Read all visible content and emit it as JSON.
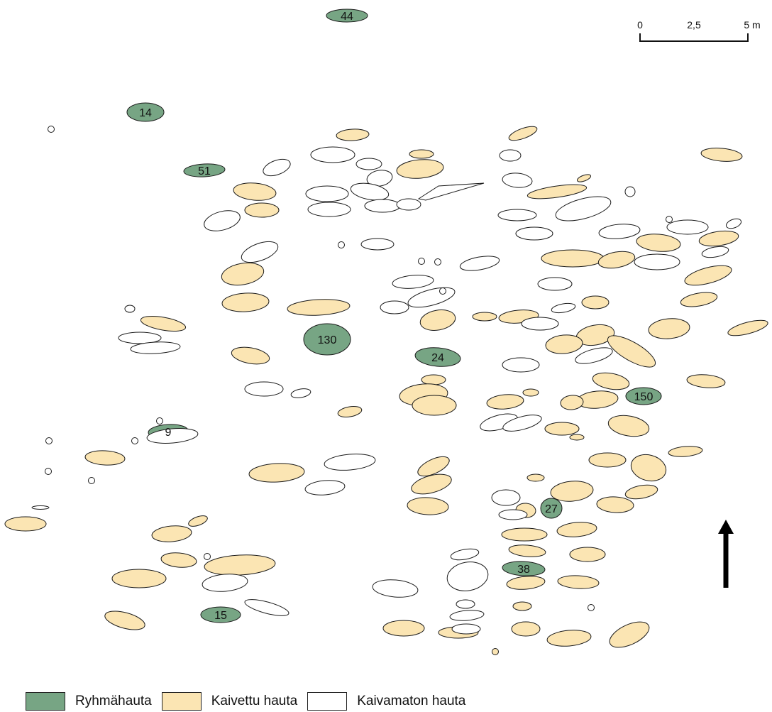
{
  "colors": {
    "group_grave": "#77a584",
    "excavated_grave": "#fbe5b3",
    "unexcavated_grave": "#ffffff",
    "outline": "#1a1a1a"
  },
  "scale_bar": {
    "ticks": [
      "0",
      "2,5",
      "5 m"
    ]
  },
  "north_arrow": {
    "icon": "north-arrow-icon"
  },
  "group_grave_labels": [
    "44",
    "14",
    "51",
    "130",
    "24",
    "9",
    "150",
    "27",
    "38",
    "15"
  ],
  "legend": {
    "group_grave": "Ryhmähauta",
    "excavated_grave": "Kaivettu hauta",
    "unexcavated_grave": "Kaivamaton hauta"
  }
}
